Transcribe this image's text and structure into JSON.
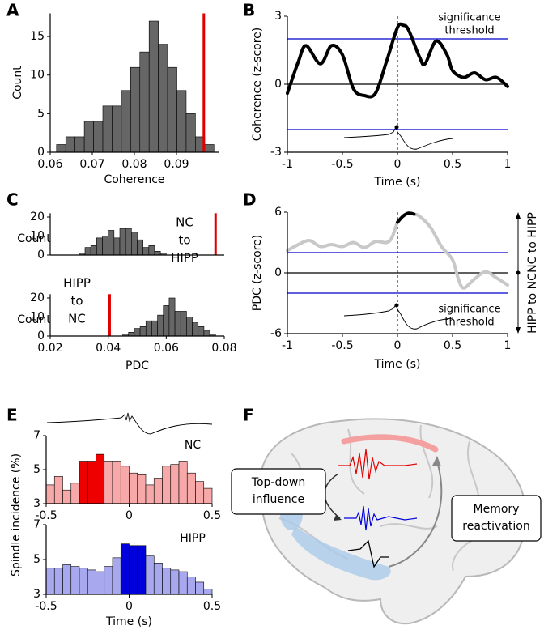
{
  "panel_labels": [
    "A",
    "B",
    "C",
    "D",
    "E",
    "F"
  ],
  "chart_data": [
    {
      "type": "histogram",
      "xlabel": "Coherence",
      "ylabel": "Count",
      "bins": [
        0.0615,
        0.0637,
        0.0659,
        0.0681,
        0.0703,
        0.0725,
        0.0747,
        0.0769,
        0.0791,
        0.0813,
        0.0835,
        0.0857,
        0.0879,
        0.0901,
        0.0923,
        0.0945,
        0.0967,
        0.0989
      ],
      "values": [
        1,
        2,
        2,
        4,
        4,
        6,
        6,
        8,
        11,
        13,
        17,
        14,
        11,
        8,
        5,
        2,
        1
      ],
      "color": "#666666",
      "xlim": [
        0.06,
        0.1
      ],
      "xticks": [
        0.06,
        0.07,
        0.08,
        0.09
      ],
      "ylim": [
        0,
        18
      ],
      "yticks": [
        0,
        5,
        10,
        15
      ],
      "reference_line": 0.0965,
      "reference_color": "#e00000"
    },
    {
      "type": "line",
      "xlabel": "Time (s)",
      "ylabel": "Coherence (z-score)",
      "x": [
        -1,
        -0.9,
        -0.83,
        -0.7,
        -0.6,
        -0.5,
        -0.4,
        -0.3,
        -0.2,
        -0.1,
        0,
        0.05,
        0.1,
        0.2,
        0.25,
        0.35,
        0.45,
        0.5,
        0.6,
        0.7,
        0.8,
        0.9,
        1
      ],
      "values": [
        -0.4,
        1.0,
        1.7,
        0.9,
        1.7,
        1.3,
        -0.2,
        -0.5,
        -0.4,
        1.0,
        2.5,
        2.6,
        2.4,
        1.2,
        0.9,
        1.9,
        1.3,
        0.6,
        0.3,
        0.5,
        0.2,
        0.3,
        -0.1
      ],
      "color": "#000000",
      "xlim": [
        -1,
        1
      ],
      "xticks": [
        -1,
        -0.5,
        0,
        0.5,
        1
      ],
      "ylim": [
        -3,
        3
      ],
      "yticks": [
        -3,
        0,
        3
      ],
      "thresholds": [
        2,
        -2
      ],
      "threshold_color": "#0000cc",
      "annotation": [
        "significance",
        "threshold"
      ]
    },
    {
      "type": "histogram",
      "ylabel": "Count",
      "label": [
        "NC",
        "to",
        "HIPP"
      ],
      "bins": [
        0.03,
        0.032,
        0.034,
        0.036,
        0.038,
        0.04,
        0.042,
        0.044,
        0.046,
        0.048,
        0.05,
        0.052,
        0.054,
        0.056,
        0.058,
        0.06
      ],
      "values": [
        1,
        4,
        5,
        9,
        10,
        13,
        9,
        14,
        14,
        12,
        8,
        4,
        5,
        2,
        1
      ],
      "color": "#666666",
      "xlim": [
        0.02,
        0.08
      ],
      "ylim": [
        0,
        22
      ],
      "yticks": [
        0,
        10,
        20
      ],
      "reference_line": 0.077,
      "reference_color": "#e00000"
    },
    {
      "type": "histogram",
      "xlabel": "PDC",
      "ylabel": "Count",
      "label": [
        "HIPP",
        "to",
        "NC"
      ],
      "bins": [
        0.045,
        0.047,
        0.049,
        0.051,
        0.053,
        0.055,
        0.057,
        0.059,
        0.061,
        0.063,
        0.065,
        0.067,
        0.069,
        0.071,
        0.073,
        0.075,
        0.077
      ],
      "values": [
        1,
        2,
        4,
        5,
        8,
        8,
        11,
        16,
        20,
        13,
        13,
        10,
        7,
        5,
        3,
        1
      ],
      "color": "#666666",
      "xlim": [
        0.02,
        0.08
      ],
      "xticks": [
        0.02,
        0.04,
        0.06,
        0.08
      ],
      "ylim": [
        0,
        22
      ],
      "yticks": [
        0,
        10,
        20
      ],
      "reference_line": 0.0405,
      "reference_color": "#e00000"
    },
    {
      "type": "line",
      "xlabel": "Time (s)",
      "ylabel": "PDC (z-score)",
      "x": [
        -1,
        -0.9,
        -0.8,
        -0.7,
        -0.6,
        -0.5,
        -0.4,
        -0.3,
        -0.2,
        -0.1,
        -0.05,
        0,
        0.05,
        0.1,
        0.15,
        0.2,
        0.3,
        0.4,
        0.5,
        0.55,
        0.6,
        0.7,
        0.8,
        0.9,
        1
      ],
      "values": [
        2.2,
        2.8,
        3.2,
        2.6,
        2.8,
        2.6,
        3.0,
        2.5,
        3.1,
        3.0,
        3.5,
        5.0,
        5.6,
        5.9,
        5.8,
        5.6,
        4.5,
        2.6,
        1.3,
        -0.5,
        -1.5,
        -0.6,
        0.1,
        -0.5,
        -1.2
      ],
      "color": "#c8c8c8",
      "highlight_xlim": [
        0,
        0.15
      ],
      "highlight_color": "#000000",
      "xlim": [
        -1,
        1
      ],
      "xticks": [
        -1,
        -0.5,
        0,
        0.5,
        1
      ],
      "ylim": [
        -6,
        6
      ],
      "yticks": [
        -6,
        0,
        6
      ],
      "thresholds": [
        2,
        -2
      ],
      "threshold_color": "#0000cc",
      "annotation": [
        "significance",
        "threshold"
      ],
      "direction_labels": [
        "NC to HIPP",
        "HIPP to NC"
      ]
    },
    {
      "type": "histogram",
      "ylabel": "Spindle incidence (%)",
      "label": "NC",
      "label_color": "#ee0000",
      "bins": [
        -0.5,
        -0.45,
        -0.4,
        -0.35,
        -0.3,
        -0.25,
        -0.2,
        -0.15,
        -0.1,
        -0.05,
        0,
        0.05,
        0.1,
        0.15,
        0.2,
        0.25,
        0.3,
        0.35,
        0.4,
        0.45,
        0.5
      ],
      "values": [
        4.1,
        4.6,
        3.8,
        4.2,
        5.5,
        5.5,
        5.9,
        5.5,
        5.5,
        5.2,
        4.8,
        4.7,
        4.1,
        4.5,
        5.2,
        5.3,
        5.5,
        4.8,
        4.3,
        3.9
      ],
      "colors": [
        "#f7a8a8",
        "#f7a8a8",
        "#f7a8a8",
        "#f7a8a8",
        "#ee0000",
        "#ee0000",
        "#ee0000",
        "#f7a8a8",
        "#f7a8a8",
        "#f7a8a8",
        "#f7a8a8",
        "#f7a8a8",
        "#f7a8a8",
        "#f7a8a8",
        "#f7a8a8",
        "#f7a8a8",
        "#f7a8a8",
        "#f7a8a8",
        "#f7a8a8",
        "#f7a8a8"
      ],
      "xlim": [
        -0.5,
        0.5
      ],
      "xticks": [
        -0.5,
        0,
        0.5
      ],
      "ylim": [
        3,
        7
      ],
      "yticks": [
        3,
        5,
        7
      ]
    },
    {
      "type": "histogram",
      "xlabel": "Time (s)",
      "label": "HIPP",
      "label_color": "#0000dd",
      "bins": [
        -0.5,
        -0.45,
        -0.4,
        -0.35,
        -0.3,
        -0.25,
        -0.2,
        -0.15,
        -0.1,
        -0.05,
        0,
        0.05,
        0.1,
        0.15,
        0.2,
        0.25,
        0.3,
        0.35,
        0.4,
        0.45,
        0.5
      ],
      "values": [
        4.5,
        4.5,
        4.7,
        4.6,
        4.5,
        4.4,
        4.3,
        4.6,
        5.1,
        5.9,
        5.8,
        5.8,
        5.2,
        4.8,
        4.5,
        4.4,
        4.3,
        4.0,
        3.7,
        3.3
      ],
      "colors": [
        "#a8a8ee",
        "#a8a8ee",
        "#a8a8ee",
        "#a8a8ee",
        "#a8a8ee",
        "#a8a8ee",
        "#a8a8ee",
        "#a8a8ee",
        "#a8a8ee",
        "#0000dd",
        "#0000dd",
        "#0000dd",
        "#a8a8ee",
        "#a8a8ee",
        "#a8a8ee",
        "#a8a8ee",
        "#a8a8ee",
        "#a8a8ee",
        "#a8a8ee",
        "#a8a8ee"
      ],
      "xlim": [
        -0.5,
        0.5
      ],
      "xticks": [
        -0.5,
        0,
        0.5
      ],
      "ylim": [
        3,
        7
      ],
      "yticks": [
        3,
        5,
        7
      ]
    }
  ],
  "diagram": {
    "boxes": [
      [
        "Top-down",
        "influence"
      ],
      [
        "Memory",
        "reactivation"
      ]
    ]
  }
}
